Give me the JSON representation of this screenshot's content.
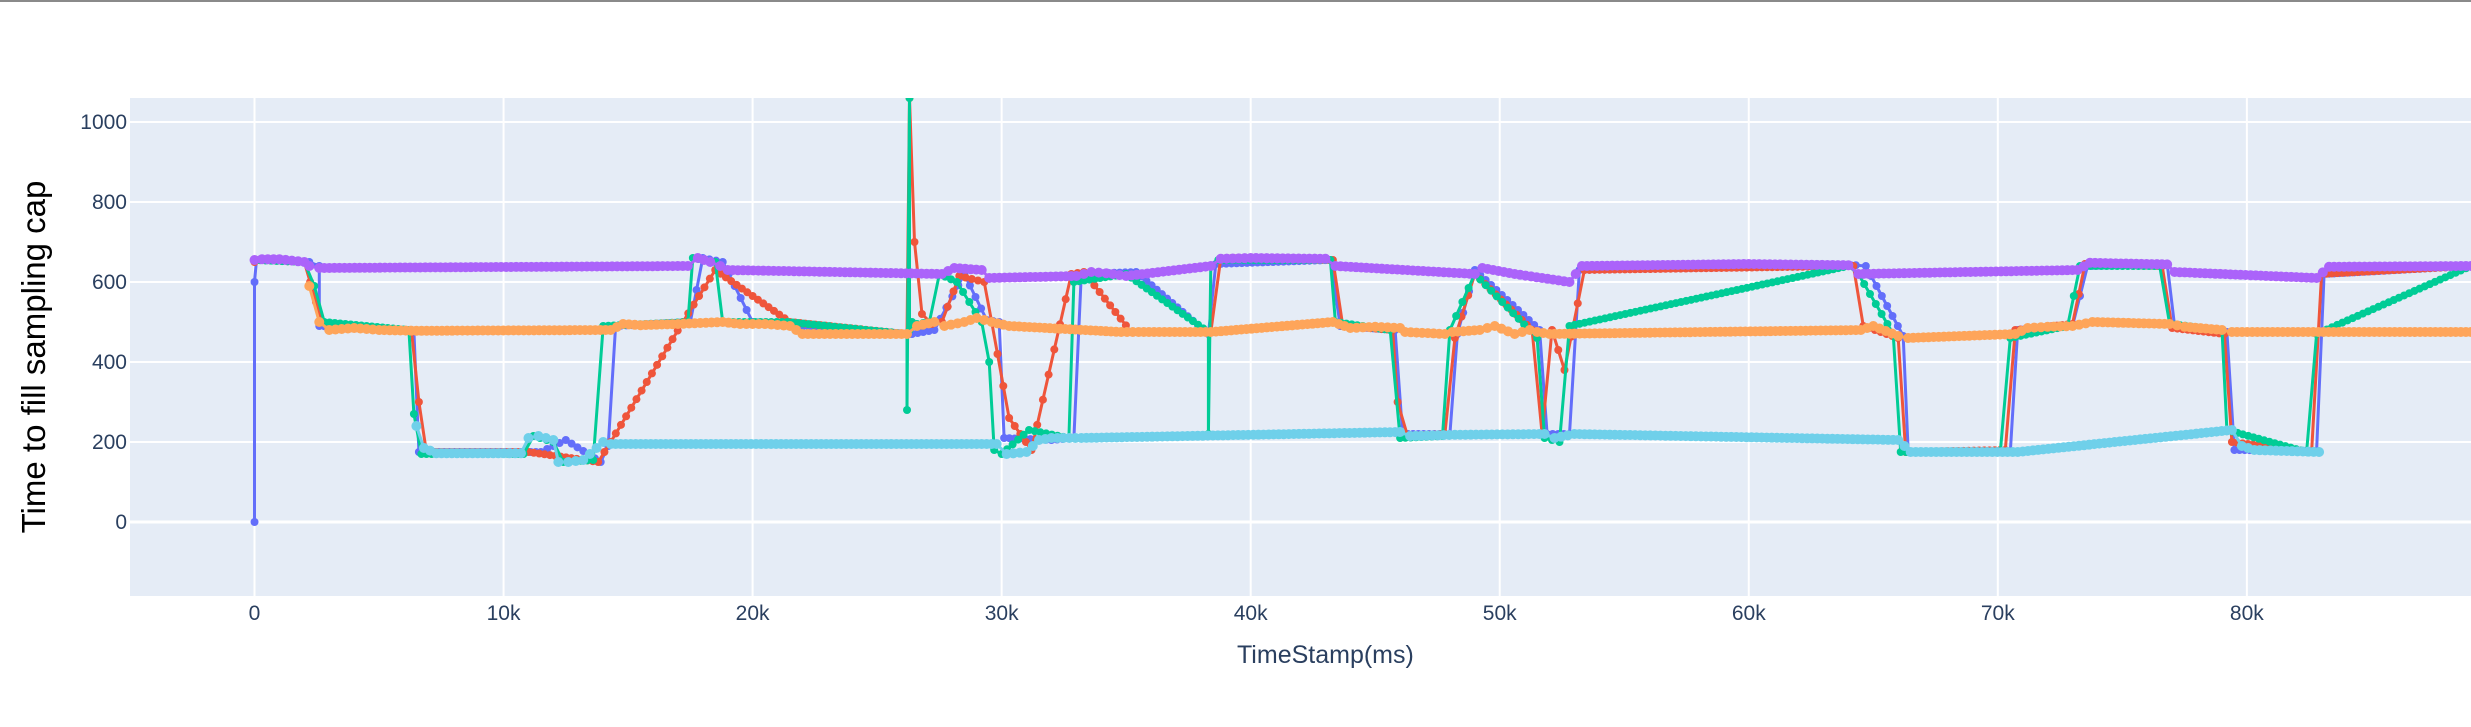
{
  "chart_data": {
    "type": "line",
    "title": "",
    "xlabel": "TimeStamp(ms)",
    "ylabel": "Time to fill sampling cap",
    "xlim": [
      -5000,
      89000
    ],
    "ylim": [
      -185,
      1060
    ],
    "x_ticks": [
      0,
      10000,
      20000,
      30000,
      40000,
      50000,
      60000,
      70000,
      80000
    ],
    "x_tick_labels": [
      "0",
      "10k",
      "20k",
      "30k",
      "40k",
      "50k",
      "60k",
      "70k",
      "80k"
    ],
    "y_ticks": [
      0,
      200,
      400,
      600,
      800,
      1000
    ],
    "y_tick_labels": [
      "0",
      "200",
      "400",
      "600",
      "800",
      "1000"
    ],
    "grid": true,
    "mode": "lines+markers",
    "series": [
      {
        "color": "#636efa",
        "x": [
          0,
          0,
          80,
          300,
          2200,
          2600,
          2600,
          6400,
          6600,
          11500,
          12500,
          13900,
          14200,
          14500,
          17500,
          18000,
          18800,
          20000,
          26300,
          26400,
          27300,
          28500,
          29400,
          29900,
          30100,
          32000,
          32900,
          33200,
          35400,
          38300,
          38600,
          43200,
          43600,
          45800,
          46100,
          48000,
          48300,
          49000,
          51600,
          51900,
          52800,
          53200,
          64300,
          64700,
          66200,
          66400,
          70500,
          70800,
          73000,
          73600,
          76800,
          77100,
          79200,
          79500,
          82800,
          83100,
          89000
        ],
        "values": [
          0,
          600,
          655,
          655,
          650,
          640,
          490,
          478,
          175,
          175,
          205,
          150,
          190,
          490,
          500,
          660,
          650,
          500,
          470,
          470,
          480,
          620,
          505,
          500,
          210,
          205,
          210,
          620,
          625,
          470,
          645,
          655,
          490,
          480,
          220,
          220,
          470,
          630,
          480,
          220,
          220,
          630,
          642,
          640,
          465,
          175,
          175,
          480,
          490,
          640,
          645,
          490,
          475,
          180,
          178,
          620,
          640
        ]
      },
      {
        "color": "#ef553b",
        "x": [
          0,
          200,
          2000,
          2700,
          3000,
          6300,
          6600,
          6900,
          11000,
          13800,
          14300,
          17200,
          18500,
          21500,
          26200,
          26300,
          26500,
          26800,
          27200,
          27600,
          28300,
          29300,
          29600,
          30300,
          31200,
          32800,
          33300,
          35200,
          38400,
          38800,
          43300,
          43700,
          45700,
          45900,
          46300,
          47800,
          48200,
          49000,
          51300,
          51700,
          52100,
          52600,
          53400,
          64200,
          64600,
          66000,
          66300,
          70300,
          70700,
          73000,
          73500,
          76600,
          77000,
          79100,
          79400,
          82600,
          83000,
          89000
        ],
        "values": [
          650,
          655,
          650,
          500,
          485,
          480,
          300,
          175,
          175,
          150,
          200,
          500,
          630,
          500,
          470,
          1060,
          700,
          520,
          495,
          500,
          615,
          600,
          500,
          260,
          180,
          620,
          625,
          475,
          475,
          660,
          655,
          490,
          480,
          300,
          215,
          220,
          460,
          620,
          480,
          220,
          480,
          380,
          630,
          640,
          490,
          460,
          175,
          180,
          480,
          495,
          645,
          640,
          485,
          470,
          200,
          175,
          620,
          640
        ]
      },
      {
        "color": "#00cc96",
        "x": [
          0,
          2000,
          2400,
          2800,
          6200,
          6400,
          6700,
          10800,
          11200,
          12000,
          12400,
          13600,
          14000,
          17400,
          17600,
          18500,
          18800,
          21400,
          26200,
          26200,
          26300,
          26300,
          26400,
          26600,
          27100,
          27500,
          28200,
          29200,
          29500,
          29700,
          30000,
          31100,
          32700,
          32900,
          35000,
          38300,
          38300,
          38400,
          38700,
          43200,
          43400,
          45600,
          46000,
          47700,
          48000,
          49000,
          51200,
          51500,
          51800,
          52400,
          52800,
          64000,
          64400,
          65800,
          66100,
          70100,
          70500,
          72800,
          73300,
          76500,
          76900,
          79000,
          79200,
          82400,
          82800,
          89000
        ],
        "values": [
          655,
          650,
          590,
          500,
          480,
          270,
          170,
          170,
          215,
          200,
          150,
          155,
          490,
          500,
          660,
          650,
          500,
          500,
          470,
          280,
          1060,
          480,
          500,
          495,
          500,
          620,
          600,
          500,
          400,
          180,
          170,
          230,
          210,
          600,
          620,
          475,
          220,
          640,
          655,
          655,
          500,
          480,
          210,
          215,
          480,
          620,
          480,
          460,
          210,
          200,
          490,
          640,
          620,
          470,
          175,
          175,
          460,
          490,
          640,
          640,
          495,
          480,
          230,
          175,
          470,
          640
        ]
      },
      {
        "color": "#ab63fa",
        "x": [
          0,
          300,
          1000,
          2000,
          2200,
          2600,
          17400,
          17800,
          18300,
          18700,
          19000,
          27600,
          28100,
          29200,
          29500,
          33000,
          33600,
          34200,
          35000,
          38400,
          38800,
          40000,
          43000,
          43400,
          49000,
          49300,
          50600,
          52800,
          53300,
          60000,
          64000,
          64400,
          73200,
          73700,
          76800,
          77100,
          82800,
          83300,
          89000
        ],
        "values": [
          655,
          657,
          657,
          650,
          640,
          635,
          640,
          660,
          650,
          640,
          630,
          620,
          635,
          630,
          610,
          615,
          625,
          622,
          615,
          640,
          658,
          660,
          658,
          640,
          620,
          635,
          620,
          600,
          640,
          645,
          642,
          620,
          630,
          648,
          644,
          625,
          610,
          638,
          640
        ]
      },
      {
        "color": "#fea55a",
        "x": [
          2200,
          2600,
          3000,
          4000,
          5000,
          6500,
          14300,
          14800,
          15500,
          17000,
          18800,
          19500,
          20500,
          21500,
          22000,
          24000,
          26200,
          26600,
          27300,
          27700,
          28500,
          29000,
          29600,
          30300,
          34800,
          35500,
          38400,
          43300,
          44000,
          45000,
          46000,
          46200,
          47800,
          48100,
          49200,
          49800,
          50600,
          51200,
          51500,
          52000,
          64500,
          65000,
          66000,
          66400,
          70700,
          71200,
          72000,
          73000,
          73800,
          76900,
          77500,
          79000,
          79400,
          89000
        ],
        "values": [
          590,
          500,
          480,
          485,
          480,
          478,
          480,
          495,
          492,
          495,
          500,
          495,
          495,
          490,
          470,
          470,
          470,
          490,
          500,
          490,
          500,
          510,
          500,
          490,
          475,
          475,
          475,
          500,
          485,
          488,
          485,
          475,
          470,
          475,
          480,
          490,
          470,
          480,
          475,
          470,
          480,
          490,
          465,
          460,
          470,
          485,
          488,
          490,
          500,
          495,
          488,
          480,
          475,
          475
        ]
      },
      {
        "color": "#6fd0ea",
        "x": [
          6500,
          6800,
          7300,
          10000,
          10700,
          11000,
          11400,
          12000,
          12200,
          12600,
          13200,
          14000,
          14300,
          29800,
          30200,
          31000,
          31500,
          32000,
          33200,
          46000,
          46400,
          48200,
          51800,
          52200,
          53000,
          66000,
          66500,
          70800,
          79400,
          79800,
          80300,
          82900
        ],
        "values": [
          240,
          185,
          172,
          172,
          172,
          210,
          215,
          205,
          150,
          150,
          155,
          200,
          195,
          195,
          170,
          175,
          205,
          210,
          210,
          225,
          215,
          218,
          220,
          210,
          220,
          205,
          175,
          175,
          230,
          190,
          180,
          175
        ]
      }
    ]
  }
}
